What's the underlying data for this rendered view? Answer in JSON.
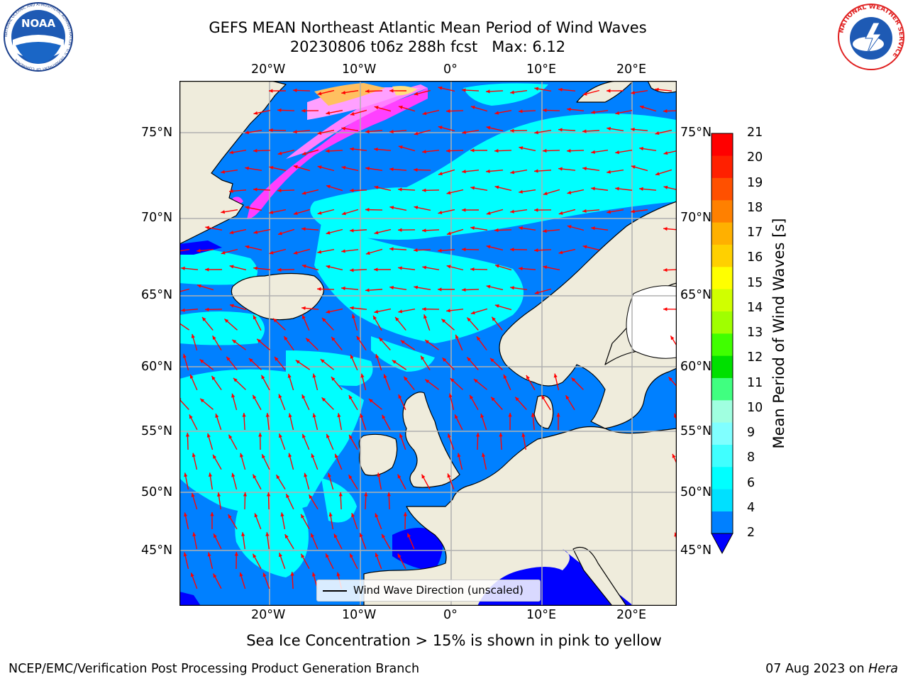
{
  "title_line1": "GEFS MEAN Northeast Atlantic Mean Period of Wind Waves",
  "title_line2": "20230806 t06z 288h fcst   Max: 6.12",
  "logos": {
    "noaa_text": "NOAA",
    "noaa_ring": "NATIONAL OCEANIC AND ATMOSPHERIC ADMINISTRATION · U.S. DEPARTMENT OF COMMERCE",
    "nws_ring": "NATIONAL WEATHER SERVICE"
  },
  "map": {
    "lon_ticks_top": [
      "20°W",
      "10°W",
      "0°",
      "10°E",
      "20°E"
    ],
    "lon_ticks_bottom": [
      "20°W",
      "10°W",
      "0°",
      "10°E",
      "20°E"
    ],
    "lat_ticks_left": [
      "75°N",
      "70°N",
      "65°N",
      "60°N",
      "55°N",
      "50°N",
      "45°N"
    ],
    "lat_ticks_right": [
      "75°N",
      "70°N",
      "65°N",
      "60°N",
      "55°N",
      "50°N",
      "45°N"
    ],
    "arrow_color": "#ff0000",
    "land_color": "#efecdc",
    "ocean_low_color": "#0080ff",
    "ocean_mid_color": "#00ffff",
    "ocean_min_color": "#0000ff",
    "ice_colors": [
      "#ff40ff",
      "#ff80ff",
      "#ffc060",
      "#ffff80"
    ]
  },
  "legend": {
    "label": "Wind Wave Direction (unscaled)"
  },
  "colorbar": {
    "label": "Mean Period of Wind Waves [s]",
    "ticks": [
      "21",
      "20",
      "19",
      "18",
      "17",
      "16",
      "15",
      "14",
      "13",
      "12",
      "11",
      "10",
      "9",
      "8",
      "6",
      "4",
      "2"
    ],
    "colors": [
      "#0080ff",
      "#00e0ff",
      "#00ffff",
      "#40ffff",
      "#80ffff",
      "#a0ffe0",
      "#40ff80",
      "#00e000",
      "#40ff00",
      "#a0ff00",
      "#d0ff00",
      "#ffff00",
      "#ffd000",
      "#ffb000",
      "#ff8000",
      "#ff5000",
      "#ff2000",
      "#ff0000"
    ],
    "under_color": "#0000ff"
  },
  "subtitle": "Sea Ice Concentration > 15% is shown in pink to yellow",
  "footer_left": "NCEP/EMC/Verification Post Processing Product Generation Branch",
  "footer_right_date": "07 Aug 2023 on ",
  "footer_right_machine": "Hera"
}
